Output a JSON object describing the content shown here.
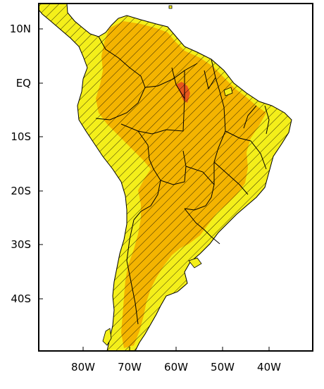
{
  "map": {
    "colors": {
      "ocean": "#ffffff",
      "land_low": "#f4ef1a",
      "land_mid": "#f4b400",
      "land_high": "#e8561c",
      "border": "#000000",
      "hatch": "#000000"
    },
    "lat_labels": [
      "10N",
      "EQ",
      "10S",
      "20S",
      "30S",
      "40S"
    ],
    "lon_labels": [
      "80W",
      "70W",
      "60W",
      "50W",
      "40W"
    ],
    "hatched": true
  }
}
